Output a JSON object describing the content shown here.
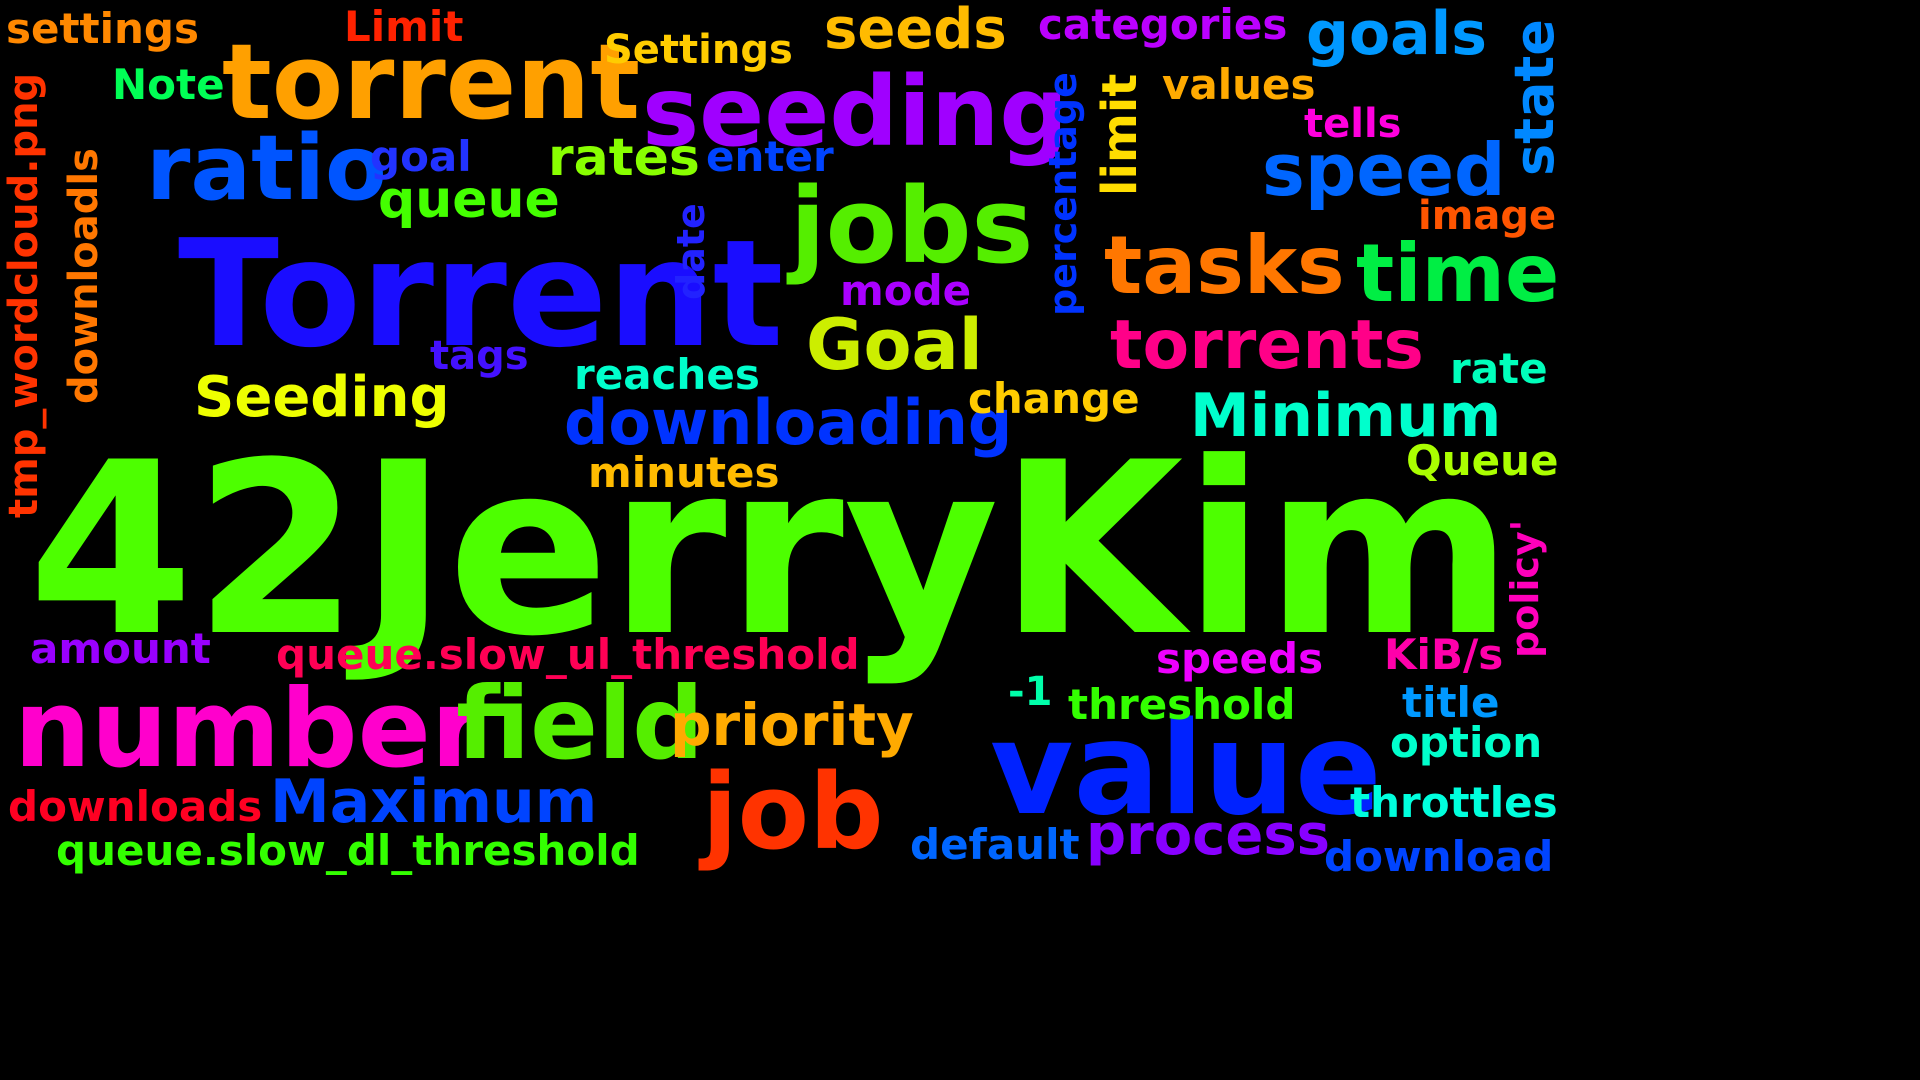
{
  "words": [
    {
      "id": "42jerrykim",
      "text": "42JerryKim",
      "color": "#4dff00"
    },
    {
      "id": "torrent-cap",
      "text": "Torrent",
      "color": "#1a0dff"
    },
    {
      "id": "torrent",
      "text": "torrent",
      "color": "#ffa000"
    },
    {
      "id": "seeding",
      "text": "seeding",
      "color": "#a000ff"
    },
    {
      "id": "jobs",
      "text": "jobs",
      "color": "#55ee00"
    },
    {
      "id": "ratio",
      "text": "ratio",
      "color": "#0055ff"
    },
    {
      "id": "number",
      "text": "number",
      "color": "#ff00cc"
    },
    {
      "id": "field",
      "text": "field",
      "color": "#55ee00"
    },
    {
      "id": "value",
      "text": "value",
      "color": "#0022ff"
    },
    {
      "id": "job",
      "text": "job",
      "color": "#ff3300"
    },
    {
      "id": "tasks",
      "text": "tasks",
      "color": "#ff7700"
    },
    {
      "id": "time",
      "text": "time",
      "color": "#00ee44"
    },
    {
      "id": "speed",
      "text": "speed",
      "color": "#0066ff"
    },
    {
      "id": "goals",
      "text": "goals",
      "color": "#0099ff"
    },
    {
      "id": "seeds",
      "text": "seeds",
      "color": "#ffbb00"
    },
    {
      "id": "torrents",
      "text": "torrents",
      "color": "#ff0088"
    },
    {
      "id": "goal-cap",
      "text": "Goal",
      "color": "#ccee00"
    },
    {
      "id": "downloading",
      "text": "downloading",
      "color": "#0033ff"
    },
    {
      "id": "minimum",
      "text": "Minimum",
      "color": "#00ffcc"
    },
    {
      "id": "maximum",
      "text": "Maximum",
      "color": "#0044ff"
    },
    {
      "id": "priority",
      "text": "priority",
      "color": "#ffaa00"
    },
    {
      "id": "process",
      "text": "process",
      "color": "#8800ff"
    },
    {
      "id": "seeding-cap",
      "text": "Seeding",
      "color": "#eeff00"
    },
    {
      "id": "rates",
      "text": "rates",
      "color": "#88ff00"
    },
    {
      "id": "queue",
      "text": "queue",
      "color": "#44ff00"
    },
    {
      "id": "settings",
      "text": "settings",
      "color": "#ff8800"
    },
    {
      "id": "limit-cap",
      "text": "Limit",
      "color": "#ff2200"
    },
    {
      "id": "settings-cap",
      "text": "Settings",
      "color": "#ffcc00"
    },
    {
      "id": "categories",
      "text": "categories",
      "color": "#bb00ff"
    },
    {
      "id": "note",
      "text": "Note",
      "color": "#00ff55"
    },
    {
      "id": "values",
      "text": "values",
      "color": "#ffaa00"
    },
    {
      "id": "tells",
      "text": "tells",
      "color": "#ff00dd"
    },
    {
      "id": "goal",
      "text": "goal",
      "color": "#2233ff"
    },
    {
      "id": "enter",
      "text": "enter",
      "color": "#0044ff"
    },
    {
      "id": "image",
      "text": "image",
      "color": "#ff5500"
    },
    {
      "id": "mode",
      "text": "mode",
      "color": "#aa00ff"
    },
    {
      "id": "tags",
      "text": "tags",
      "color": "#4411ff"
    },
    {
      "id": "reaches",
      "text": "reaches",
      "color": "#00ffcc"
    },
    {
      "id": "change",
      "text": "change",
      "color": "#ffcc00"
    },
    {
      "id": "rate",
      "text": "rate",
      "color": "#00ffbb"
    },
    {
      "id": "minutes",
      "text": "minutes",
      "color": "#ffbb00"
    },
    {
      "id": "queue-cap",
      "text": "Queue",
      "color": "#aaff00"
    },
    {
      "id": "amount",
      "text": "amount",
      "color": "#9900ff"
    },
    {
      "id": "queue-slow-ul",
      "text": "queue.slow_ul_threshold",
      "color": "#ff0055"
    },
    {
      "id": "speeds",
      "text": "speeds",
      "color": "#ee00ff"
    },
    {
      "id": "kibs",
      "text": "KiB/s",
      "color": "#ff00aa"
    },
    {
      "id": "minus-one",
      "text": "-1",
      "color": "#00ffaa"
    },
    {
      "id": "threshold",
      "text": "threshold",
      "color": "#33ff00"
    },
    {
      "id": "title",
      "text": "title",
      "color": "#0099ff"
    },
    {
      "id": "option",
      "text": "option",
      "color": "#00ffcc"
    },
    {
      "id": "downloads",
      "text": "downloads",
      "color": "#ff0022"
    },
    {
      "id": "throttles",
      "text": "throttles",
      "color": "#00ffdd"
    },
    {
      "id": "queue-slow-dl",
      "text": "queue.slow_dl_threshold",
      "color": "#33ff00"
    },
    {
      "id": "default",
      "text": "default",
      "color": "#0066ff"
    },
    {
      "id": "download",
      "text": "download",
      "color": "#0044ff"
    },
    {
      "id": "state",
      "text": "state",
      "color": "#0088ff"
    },
    {
      "id": "limit",
      "text": "limit",
      "color": "#ffdd00"
    },
    {
      "id": "percentage",
      "text": "percentage",
      "color": "#0033ff"
    },
    {
      "id": "date",
      "text": "date",
      "color": "#2222ff"
    },
    {
      "id": "tmp-wordcloud",
      "text": "tmp_wordcloud.png",
      "color": "#ff3300"
    },
    {
      "id": "downloadls",
      "text": "downloadls",
      "color": "#ff7700"
    },
    {
      "id": "policy",
      "text": "policy'",
      "color": "#ff00bb"
    }
  ]
}
